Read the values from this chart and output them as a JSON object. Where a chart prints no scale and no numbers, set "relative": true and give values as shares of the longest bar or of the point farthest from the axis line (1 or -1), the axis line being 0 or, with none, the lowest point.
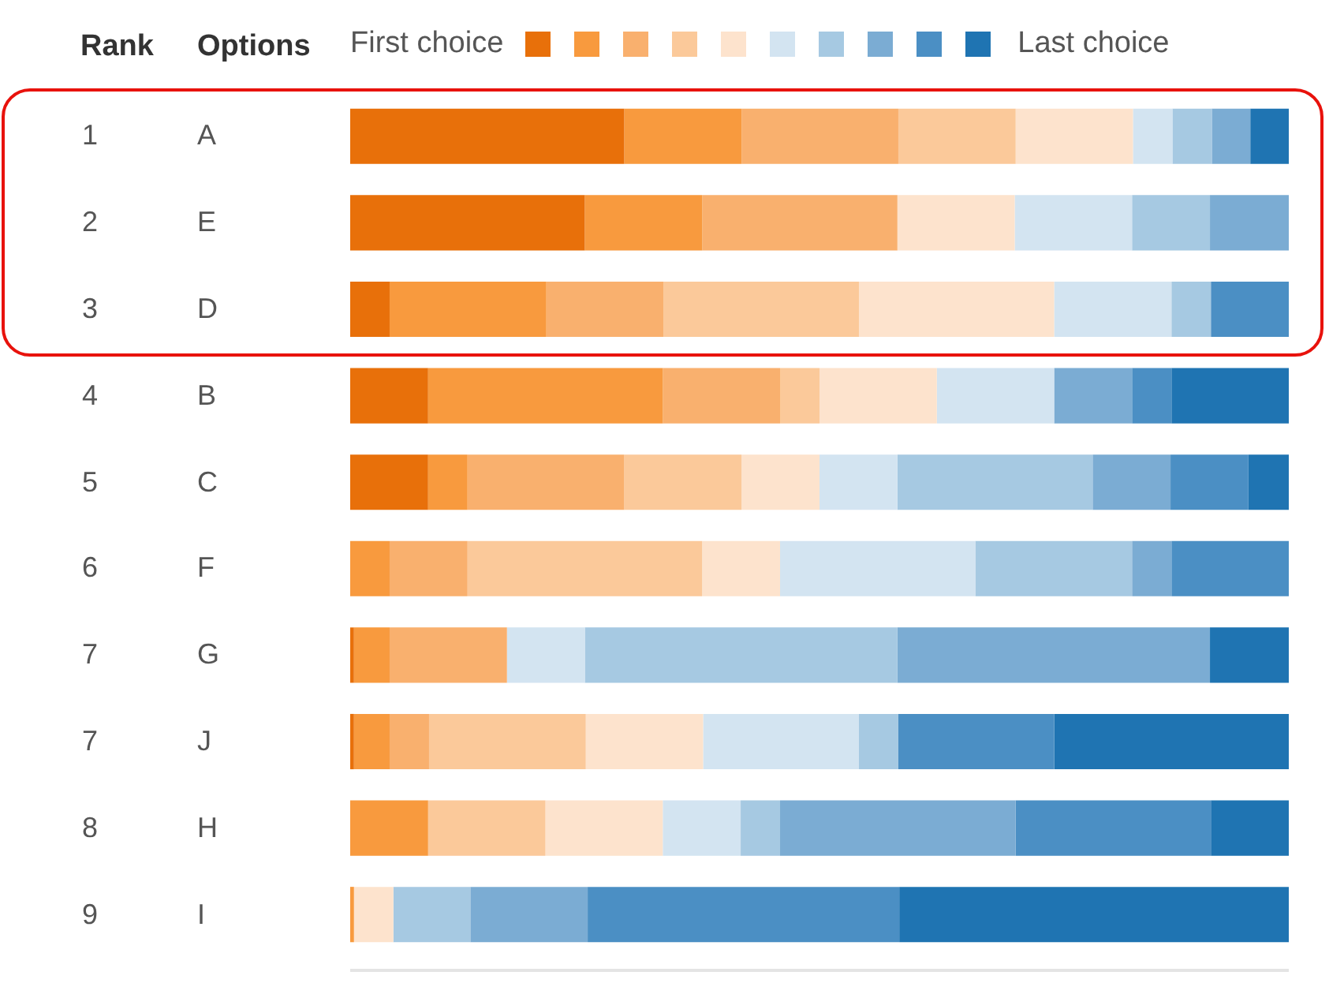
{
  "chart_data": {
    "type": "bar",
    "orientation": "horizontal",
    "stacked": true,
    "relative": true,
    "categories": [
      "A",
      "E",
      "D",
      "B",
      "C",
      "F",
      "G",
      "J",
      "H",
      "I"
    ],
    "annotations": [
      "Rank",
      "Options",
      "First choice",
      "Last choice",
      "1",
      "2",
      "3",
      "4",
      "5",
      "6",
      "7",
      "7",
      "8",
      "9"
    ],
    "series": [
      {
        "color": "#e8700a",
        "values": [
          0.292,
          0.25,
          0.042,
          0.083,
          0.083,
          0,
          0.004,
          0.004,
          0,
          0
        ]
      },
      {
        "color": "#f89a3e",
        "values": [
          0.125,
          0.125,
          0.167,
          0.25,
          0.042,
          0.042,
          0.038,
          0.038,
          0.083,
          0.004
        ]
      },
      {
        "color": "#f9b06e",
        "values": [
          0.167,
          0.208,
          0.125,
          0.125,
          0.167,
          0.083,
          0.125,
          0.042,
          0,
          0
        ]
      },
      {
        "color": "#fbc99a",
        "values": [
          0.125,
          0,
          0.208,
          0.042,
          0.125,
          0.25,
          0,
          0.167,
          0.125,
          0
        ]
      },
      {
        "color": "#fde3cd",
        "values": [
          0.125,
          0.125,
          0.208,
          0.125,
          0.083,
          0.083,
          0,
          0.125,
          0.125,
          0.042
        ]
      },
      {
        "color": "#d3e4f1",
        "values": [
          0.042,
          0.125,
          0.125,
          0.125,
          0.083,
          0.208,
          0.083,
          0.166,
          0.083,
          0
        ]
      },
      {
        "color": "#a6c9e2",
        "values": [
          0.042,
          0.083,
          0.042,
          0,
          0.208,
          0.167,
          0.333,
          0.042,
          0.042,
          0.082
        ]
      },
      {
        "color": "#7bacd3",
        "values": [
          0.041,
          0.084,
          0,
          0.083,
          0.083,
          0.042,
          0.333,
          0,
          0.251,
          0.125
        ]
      },
      {
        "color": "#4b8fc4",
        "values": [
          0,
          0,
          0.083,
          0.042,
          0.083,
          0.125,
          0,
          0.166,
          0.208,
          0.332
        ]
      },
      {
        "color": "#1f74b2",
        "values": [
          0.041,
          0,
          0,
          0.125,
          0.043,
          0,
          0.084,
          0.25,
          0.083,
          0.415
        ]
      }
    ]
  }
}
